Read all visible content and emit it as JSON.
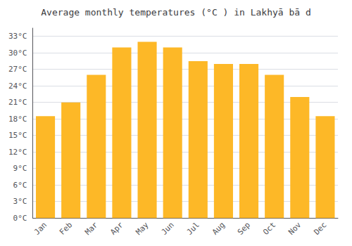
{
  "chart_data": {
    "type": "bar",
    "title": "Average monthly temperatures (°C ) in Lakhyā bā d",
    "categories": [
      "Jan",
      "Feb",
      "Mar",
      "Apr",
      "May",
      "Jun",
      "Jul",
      "Aug",
      "Sep",
      "Oct",
      "Nov",
      "Dec"
    ],
    "values": [
      18.5,
      21.0,
      26.0,
      31.0,
      32.0,
      31.0,
      28.5,
      28.0,
      28.0,
      26.0,
      22.0,
      18.5
    ],
    "color": "#FDB827",
    "ylim": [
      0,
      34.5
    ],
    "yticks": [
      {
        "value": 0,
        "label": "0°C"
      },
      {
        "value": 3,
        "label": "3°C"
      },
      {
        "value": 6,
        "label": "6°C"
      },
      {
        "value": 9,
        "label": "9°C"
      },
      {
        "value": 12,
        "label": "12°C"
      },
      {
        "value": 15,
        "label": "15°C"
      },
      {
        "value": 18,
        "label": "18°C"
      },
      {
        "value": 21,
        "label": "21°C"
      },
      {
        "value": 24,
        "label": "24°C"
      },
      {
        "value": 27,
        "label": "27°C"
      },
      {
        "value": 30,
        "label": "30°C"
      },
      {
        "value": 33,
        "label": "33°C"
      }
    ],
    "grid": true
  }
}
